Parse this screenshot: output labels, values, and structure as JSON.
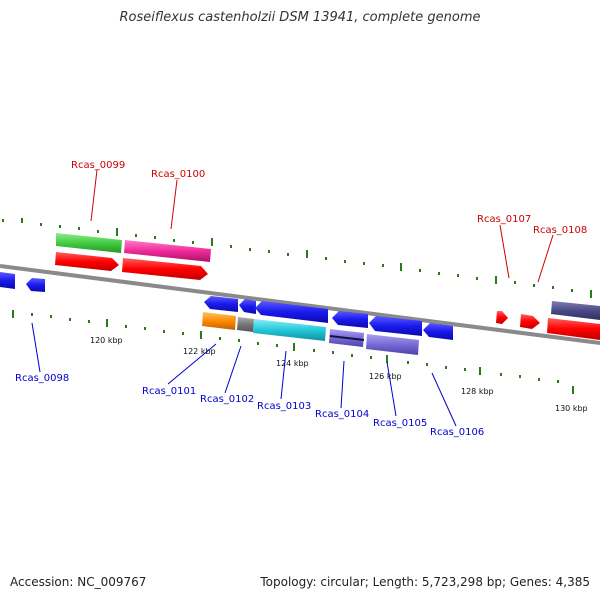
{
  "title": "Roseiflexus castenholzii DSM 13941, complete genome",
  "footer": {
    "accession": "Accession: NC_009767",
    "stats": "Topology: circular; Length: 5,723,298 bp; Genes: 4,385"
  },
  "scale_labels": [
    "120 kbp",
    "122 kbp",
    "124 kbp",
    "126 kbp",
    "128 kbp",
    "130 kbp"
  ],
  "colors": {
    "forward_label": "#cc0000",
    "reverse_label": "#0000cc",
    "backbone": "#888888",
    "tick": "#2a7a1a"
  },
  "genes_forward": [
    {
      "id": "Rcas_0099",
      "color": "#44cc44"
    },
    {
      "id": "Rcas_0100",
      "color": "#ee2a9a"
    },
    {
      "id": "Rcas_0107",
      "color": "#ff0000"
    },
    {
      "id": "Rcas_0108",
      "color": "#ff0000"
    }
  ],
  "genes_reverse": [
    {
      "id": "Rcas_0098",
      "color": "#1a1aee"
    },
    {
      "id": "Rcas_0101",
      "color": "#1a1aee"
    },
    {
      "id": "Rcas_0102",
      "color": "#ff8a00"
    },
    {
      "id": "Rcas_0103",
      "color": "#22c8d8"
    },
    {
      "id": "Rcas_0104",
      "color": "#1a1aee"
    },
    {
      "id": "Rcas_0105",
      "color": "#7a6ad8"
    },
    {
      "id": "Rcas_0106",
      "color": "#1a1aee"
    }
  ]
}
